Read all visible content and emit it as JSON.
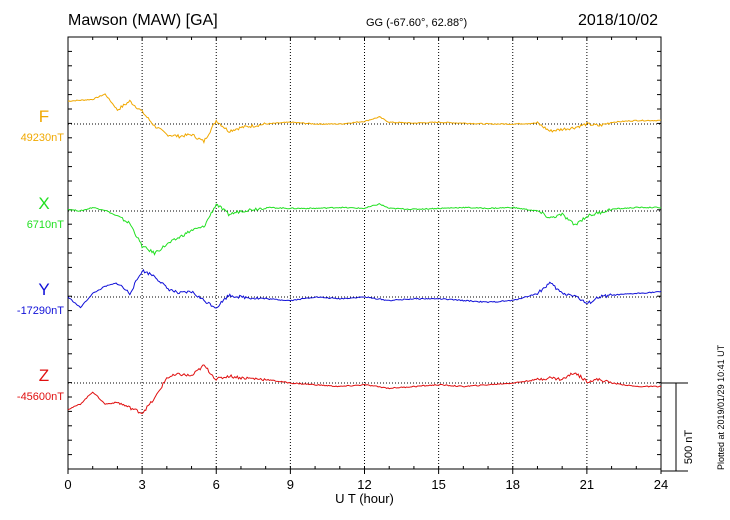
{
  "header": {
    "station": "Mawson (MAW)  [GA]",
    "coords": "GG (-67.60°,  62.88°)",
    "date": "2018/10/02"
  },
  "footer": {
    "plotted": "Plotted at 2019/01/29 10:41 UT"
  },
  "colors": {
    "F": "#f0a800",
    "X": "#22e022",
    "Y": "#1010d8",
    "Z": "#e01010"
  },
  "chart_data": {
    "type": "line",
    "xlabel": "U T (hour)",
    "xlim": [
      0,
      24
    ],
    "xticks": [
      "0",
      "3",
      "6",
      "9",
      "12",
      "15",
      "18",
      "21",
      "24"
    ],
    "scale_bar": "500 nT",
    "series": [
      {
        "name": "F",
        "baseline": "49230nT",
        "x": [
          0,
          1,
          1.5,
          2,
          2.5,
          3,
          3.5,
          4,
          4.5,
          5,
          5.5,
          6,
          6.5,
          7,
          8,
          9,
          10,
          11,
          12,
          12.6,
          13,
          14,
          15,
          16,
          17,
          18,
          19,
          19.5,
          20,
          20.5,
          21,
          21.5,
          22,
          23,
          24
        ],
        "values": [
          130,
          140,
          170,
          80,
          130,
          70,
          -10,
          -60,
          -70,
          -60,
          -100,
          20,
          -40,
          -20,
          0,
          10,
          0,
          0,
          15,
          40,
          10,
          5,
          10,
          5,
          0,
          0,
          5,
          -40,
          -30,
          -20,
          0,
          -10,
          10,
          20,
          20
        ]
      },
      {
        "name": "X",
        "baseline": "6710nT",
        "x": [
          0,
          0.5,
          1,
          1.5,
          2,
          2.5,
          3,
          3.5,
          4,
          4.5,
          5,
          5.5,
          6,
          6.5,
          7,
          8,
          9,
          10,
          11,
          12,
          12.6,
          13,
          14,
          15,
          16,
          17,
          18,
          19,
          19.5,
          20,
          20.5,
          21,
          21.5,
          22,
          23,
          24
        ],
        "values": [
          10,
          0,
          20,
          5,
          -30,
          -70,
          -200,
          -240,
          -190,
          -150,
          -110,
          -90,
          40,
          -20,
          0,
          20,
          15,
          15,
          20,
          15,
          40,
          15,
          10,
          15,
          20,
          15,
          20,
          0,
          -40,
          -20,
          -80,
          -30,
          -10,
          10,
          20,
          20
        ]
      },
      {
        "name": "Y",
        "baseline": "-17290nT",
        "x": [
          0,
          0.5,
          1,
          1.5,
          2,
          2.5,
          3,
          3.5,
          4,
          4.5,
          5,
          5.5,
          6,
          6.5,
          7,
          8,
          9,
          10,
          11,
          12,
          13,
          14,
          15,
          16,
          17,
          18,
          19,
          19.5,
          20,
          20.5,
          21,
          21.5,
          22,
          23,
          24
        ],
        "values": [
          0,
          -60,
          20,
          60,
          80,
          20,
          150,
          120,
          50,
          20,
          30,
          -20,
          -60,
          10,
          0,
          -10,
          -20,
          0,
          -10,
          0,
          -20,
          -10,
          -10,
          -20,
          -30,
          -20,
          20,
          80,
          20,
          10,
          -40,
          0,
          10,
          20,
          30
        ]
      },
      {
        "name": "Z",
        "baseline": "-45600nT",
        "x": [
          0,
          0.5,
          1,
          1.5,
          2,
          2.5,
          3,
          3.5,
          4,
          4.5,
          5,
          5.5,
          6,
          6.5,
          7,
          8,
          9,
          10,
          11,
          12,
          13,
          14,
          15,
          16,
          17,
          18,
          19,
          19.5,
          20,
          20.5,
          21,
          21.5,
          22,
          23,
          24
        ],
        "values": [
          -150,
          -120,
          -50,
          -120,
          -110,
          -140,
          -170,
          -90,
          30,
          50,
          40,
          100,
          20,
          40,
          30,
          20,
          0,
          -10,
          -20,
          -10,
          -30,
          -20,
          -10,
          -20,
          -10,
          0,
          20,
          30,
          20,
          60,
          10,
          20,
          0,
          -20,
          -20
        ]
      }
    ]
  }
}
